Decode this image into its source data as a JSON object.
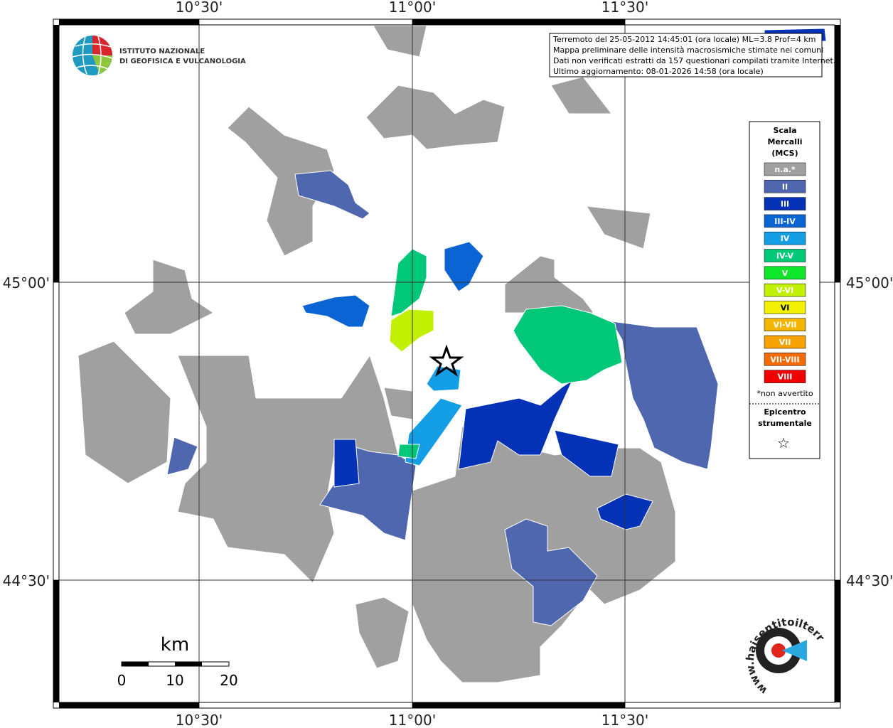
{
  "map": {
    "top_labels": [
      "10°30'",
      "11°00'",
      "11°30'"
    ],
    "bottom_labels": [
      "10°30'",
      "11°00'",
      "11°30'"
    ],
    "left_labels": [
      "45°00'",
      "44°30'"
    ],
    "right_labels": [
      "45°00'",
      "44°30'"
    ]
  },
  "logo": {
    "line1": "ISTITUTO NAZIONALE",
    "line2": "DI GEOFISICA E VULCANOLOGIA"
  },
  "info": {
    "lines": [
      "Terremoto del 25-05-2012 14:45:01 (ora locale) ML=3.8 Prof=4 km",
      "Mappa preliminare delle intensità macrosismiche stimate nei comuni",
      "Dati non verificati estratti da 157 questionari compilati tramite Internet.",
      "Ultimo aggiornamento: 08-01-2026 14:58 (ora locale)"
    ]
  },
  "legend": {
    "title": [
      "Scala",
      "Mercalli",
      "(MCS)"
    ],
    "items": [
      {
        "label": "n.a.*",
        "color": "#a0a0a0"
      },
      {
        "label": "II",
        "color": "#4f67ae"
      },
      {
        "label": "III",
        "color": "#0332b6"
      },
      {
        "label": "III-IV",
        "color": "#0a64d4"
      },
      {
        "label": "IV",
        "color": "#139ee6"
      },
      {
        "label": "IV-V",
        "color": "#00c878"
      },
      {
        "label": "V",
        "color": "#0fe52a"
      },
      {
        "label": "V-VI",
        "color": "#c2f003"
      },
      {
        "label": "VI",
        "color": "#f2f200"
      },
      {
        "label": "VI-VII",
        "color": "#f3b600"
      },
      {
        "label": "VII",
        "color": "#f8a200"
      },
      {
        "label": "VII-VIII",
        "color": "#f26b06"
      },
      {
        "label": "VIII",
        "color": "#f00000"
      }
    ],
    "note": "*non avvertito",
    "epicenter": [
      "Epicentro",
      "strumentale"
    ],
    "symbol": "☆"
  },
  "scale": {
    "unit": "km",
    "labels": [
      "0",
      "10",
      "20"
    ]
  },
  "badge": {
    "text": "www.haisentitoilterremoto.it"
  }
}
